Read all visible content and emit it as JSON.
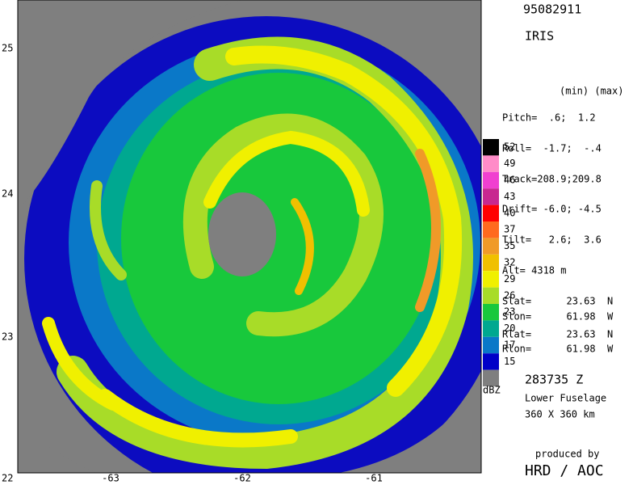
{
  "header": {
    "id": "95082911",
    "system": "IRIS"
  },
  "axes": {
    "y_labels": [
      "25",
      "24",
      "23",
      "22"
    ],
    "x_labels": [
      "-63",
      "-62",
      "-61"
    ]
  },
  "colorbar": {
    "unit": "dBZ",
    "levels": [
      {
        "label": "52",
        "color": "#000000"
      },
      {
        "label": "49",
        "color": "#ff8cc8"
      },
      {
        "label": "46",
        "color": "#f040d0"
      },
      {
        "label": "43",
        "color": "#c82890"
      },
      {
        "label": "40",
        "color": "#ff0000"
      },
      {
        "label": "37",
        "color": "#ff6a1e"
      },
      {
        "label": "35",
        "color": "#f09a28"
      },
      {
        "label": "32",
        "color": "#f0c000"
      },
      {
        "label": "29",
        "color": "#f0f000"
      },
      {
        "label": "26",
        "color": "#a8dc28"
      },
      {
        "label": "23",
        "color": "#18c83c"
      },
      {
        "label": "20",
        "color": "#00a890"
      },
      {
        "label": "17",
        "color": "#0a78c8"
      },
      {
        "label": "15",
        "color": "#0000c8"
      }
    ],
    "bottom_color": "#7f7f7f"
  },
  "info": {
    "header": "(min) (max)",
    "lines": [
      "Pitch=  .6;  1.2",
      "Roll=  -1.7;  -.4",
      "Track=208.9;209.8",
      "Drift= -6.0; -4.5",
      "Tilt=   2.6;  3.6",
      "Alt= 4318 m",
      "Slat=      23.63  N",
      "Slon=      61.98  W",
      "Rlat=      23.63  N",
      "Rlon=      61.98  W"
    ]
  },
  "footer": {
    "time": "283735 Z",
    "antenna": "Lower Fuselage",
    "range": "360 X 360 km",
    "credit_label": "produced by",
    "credit": "HRD / AOC"
  }
}
